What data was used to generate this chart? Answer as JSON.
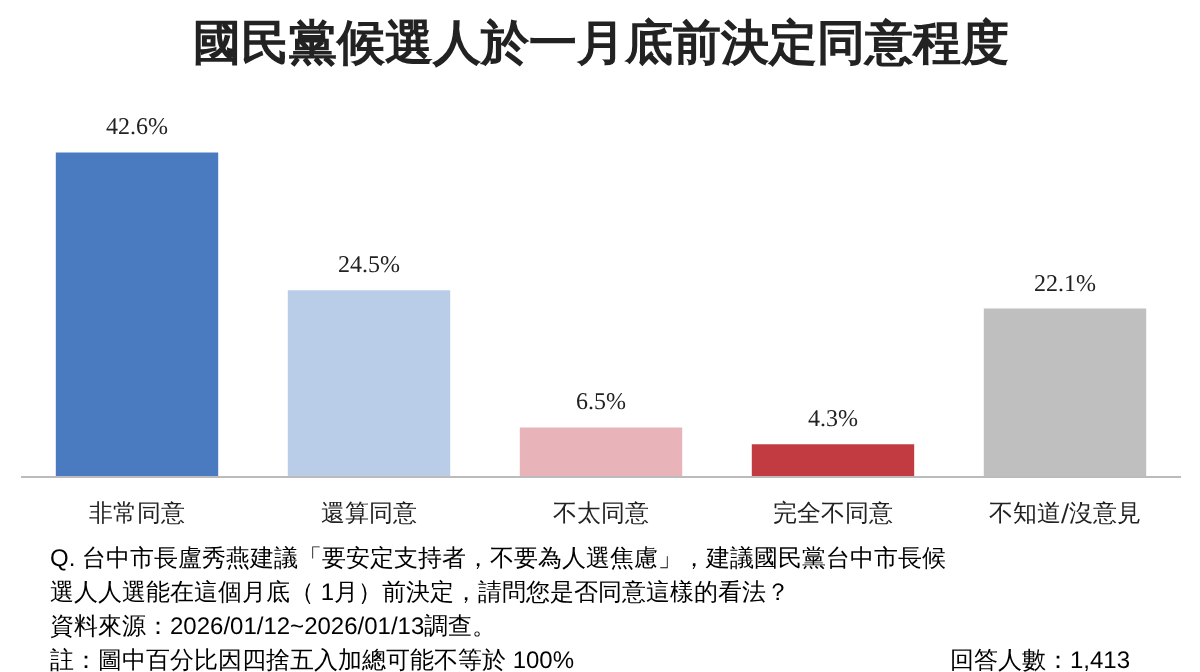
{
  "chart_data": {
    "type": "bar",
    "title": "國民黨候選人於一月底前決定同意程度",
    "categories": [
      "非常同意",
      "還算同意",
      "不太同意",
      "完全不同意",
      "不知道/沒意見"
    ],
    "values": [
      42.6,
      24.5,
      6.5,
      4.3,
      22.1
    ],
    "colors": [
      "#4a7bc0",
      "#b9cde8",
      "#e8b4b9",
      "#c23b40",
      "#bfbfbf"
    ],
    "value_labels": [
      "42.6%",
      "24.5%",
      "6.5%",
      "4.3%",
      "22.1%"
    ],
    "annotations": [
      "Q. 台中市長盧秀燕建議「要安定支持者，不要為人選焦慮」，建議國民黨台中市長候選人人選能在這個月底（ 1月）前決定，請問您是否同意這樣的看法？",
      "資料來源：2026/01/12~2026/01/13調查。",
      "註：圖中百分比因四捨五入加總可能不等於 100%",
      "回答人數：1,413"
    ]
  }
}
